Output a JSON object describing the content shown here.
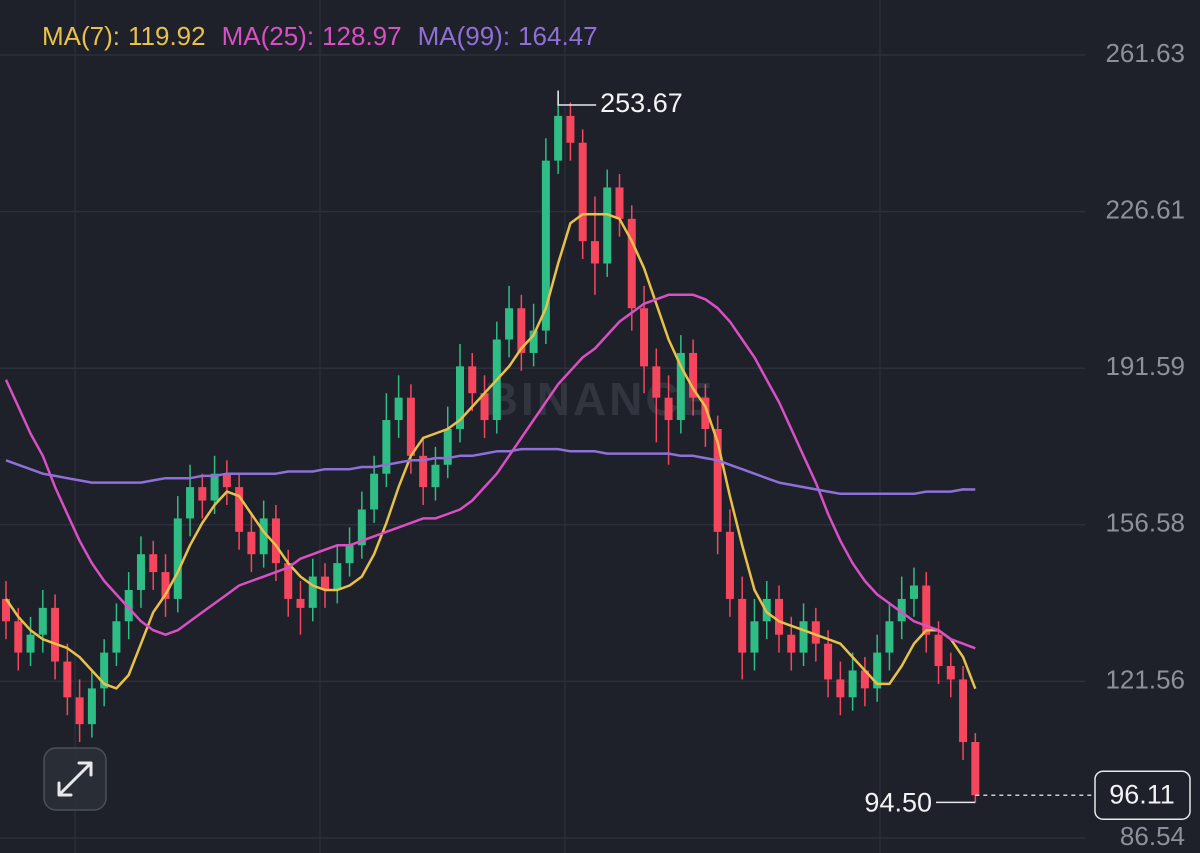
{
  "chart_data": {
    "type": "candlestick",
    "watermark": "BINANCE",
    "up_color": "#2ebd85",
    "down_color": "#f6465d",
    "ylim": [
      83.19,
      273.92
    ],
    "yticks": [
      261.63,
      226.61,
      191.59,
      156.58,
      121.56,
      86.54
    ],
    "grid": true,
    "open": [
      140,
      135,
      128,
      132,
      138,
      126,
      118,
      112,
      120,
      128,
      135,
      142,
      150,
      146,
      140,
      158,
      165,
      162,
      168,
      165,
      155,
      150,
      158,
      148,
      140,
      138,
      145,
      142,
      148,
      152,
      160,
      168,
      180,
      185,
      172,
      165,
      170,
      178,
      192,
      186,
      180,
      198,
      205,
      195,
      200,
      238,
      248,
      242,
      220,
      215,
      232,
      225,
      205,
      192,
      185,
      180,
      195,
      185,
      178,
      155,
      140,
      128,
      135,
      140,
      132,
      128,
      135,
      130,
      122,
      118,
      124,
      120,
      128,
      135,
      140,
      143,
      132,
      125,
      122,
      108
    ],
    "high": [
      144,
      138,
      136,
      142,
      141,
      130,
      122,
      124,
      131,
      139,
      146,
      154,
      153,
      150,
      163,
      170,
      168,
      172,
      171,
      168,
      159,
      162,
      161,
      151,
      144,
      149,
      148,
      152,
      156,
      164,
      172,
      186,
      190,
      188,
      176,
      174,
      183,
      197,
      195,
      190,
      202,
      210,
      208,
      206,
      243,
      253.67,
      251,
      245,
      230,
      236,
      235,
      228,
      210,
      196,
      190,
      199,
      198,
      188,
      181,
      160,
      145,
      140,
      144,
      143,
      136,
      139,
      138,
      133,
      126,
      128,
      127,
      132,
      139,
      145,
      147,
      146,
      135,
      128,
      125,
      110
    ],
    "low": [
      131,
      124,
      125,
      128,
      122,
      114,
      108,
      109,
      116,
      125,
      131,
      138,
      142,
      136,
      137,
      154,
      158,
      159,
      161,
      151,
      146,
      147,
      144,
      136,
      132,
      135,
      138,
      139,
      145,
      149,
      157,
      165,
      176,
      168,
      161,
      162,
      167,
      175,
      182,
      176,
      177,
      194,
      191,
      192,
      197,
      235,
      238,
      216,
      208,
      212,
      221,
      200,
      186,
      175,
      170,
      177,
      181,
      174,
      150,
      136,
      122,
      124,
      131,
      128,
      124,
      125,
      126,
      118,
      114,
      115,
      116,
      117,
      124,
      131,
      136,
      128,
      121,
      118,
      104,
      94.5
    ],
    "close": [
      135,
      128,
      132,
      138,
      126,
      118,
      112,
      120,
      128,
      135,
      142,
      150,
      146,
      140,
      158,
      165,
      162,
      168,
      165,
      155,
      150,
      158,
      148,
      140,
      138,
      145,
      142,
      148,
      152,
      160,
      168,
      180,
      185,
      172,
      165,
      170,
      178,
      192,
      186,
      180,
      198,
      205,
      195,
      200,
      238,
      248,
      242,
      220,
      215,
      232,
      225,
      205,
      192,
      185,
      180,
      195,
      185,
      178,
      155,
      140,
      128,
      135,
      140,
      132,
      128,
      135,
      130,
      122,
      118,
      124,
      120,
      128,
      135,
      140,
      143,
      132,
      125,
      122,
      108,
      96.11
    ],
    "series": [
      {
        "name": "MA(7):",
        "color": "#e9c04a",
        "values": [
          140,
          136,
          133,
          131,
          130,
          129,
          127,
          124,
          121,
          120,
          123,
          130,
          137,
          141,
          146,
          152,
          157,
          161,
          164,
          163,
          159,
          155,
          152,
          148,
          145,
          143,
          142,
          142,
          143,
          145,
          150,
          157,
          165,
          172,
          176,
          177,
          178,
          180,
          183,
          186,
          189,
          192,
          196,
          199,
          205,
          215,
          224,
          226,
          226,
          226,
          225,
          220,
          214,
          206,
          198,
          192,
          187,
          183,
          175,
          163,
          152,
          142,
          137,
          135,
          134,
          133,
          132,
          131,
          130,
          127,
          124,
          121,
          121,
          125,
          130,
          133,
          133,
          131,
          127,
          119.92
        ]
      },
      {
        "name": "MA(25):",
        "color": "#d94fc4",
        "values": [
          189,
          183,
          177,
          172,
          165,
          159,
          153,
          148,
          144,
          141,
          138,
          135,
          133,
          132,
          133,
          135,
          137,
          139,
          141,
          143,
          144,
          145,
          146,
          147,
          149,
          150,
          151,
          152,
          152,
          153,
          154,
          155,
          156,
          157,
          158,
          158,
          159,
          160,
          162,
          165,
          168,
          172,
          176,
          180,
          184,
          188,
          191,
          194,
          196,
          199,
          202,
          204,
          206,
          207,
          208,
          208,
          208,
          207,
          205,
          202,
          198,
          194,
          189,
          184,
          178,
          172,
          166,
          159,
          153,
          148,
          144,
          141,
          139,
          137,
          135,
          134,
          133,
          131,
          130,
          128.97
        ]
      },
      {
        "name": "MA(99):",
        "color": "#8f6fd8",
        "values": [
          171,
          170,
          169,
          168,
          167.5,
          167,
          166.5,
          166,
          166,
          166,
          166,
          166,
          166.5,
          167,
          167,
          167,
          167.5,
          167.5,
          168,
          168,
          168,
          168,
          168,
          168.5,
          168.5,
          168.5,
          169,
          169,
          169,
          169.5,
          169.5,
          170,
          170.5,
          171,
          171,
          171.5,
          171.5,
          172,
          172,
          172.5,
          173,
          173,
          173.5,
          173.5,
          173.5,
          173.5,
          173,
          173,
          173,
          172.5,
          172.5,
          172.5,
          172.5,
          172.5,
          172.5,
          172,
          172,
          171.5,
          171,
          170,
          169,
          168,
          167,
          166,
          165.5,
          165,
          164.5,
          164,
          163.5,
          163.5,
          163.5,
          163.5,
          163.5,
          163.5,
          163.5,
          164,
          164,
          164,
          164.5,
          164.47
        ]
      }
    ],
    "max_label": 253.67,
    "min_label": {
      "value": 94.5,
      "label": "94.50"
    },
    "last_price": 96.11
  }
}
